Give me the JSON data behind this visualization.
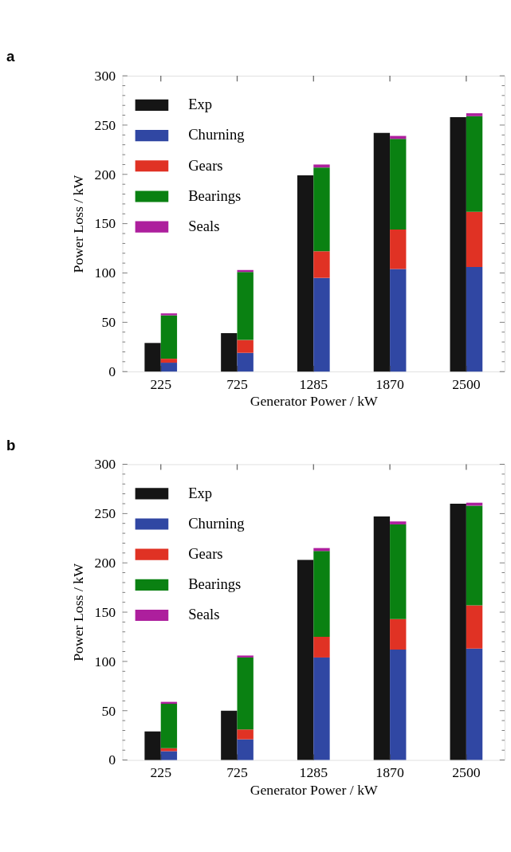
{
  "chart_data": [
    {
      "type": "bar",
      "title": "a",
      "xlabel": "Generator Power / kW",
      "ylabel": "Power Loss / kW",
      "categories": [
        "225",
        "725",
        "1285",
        "1870",
        "2500"
      ],
      "ylim": [
        0,
        300
      ],
      "yticks": [
        0,
        50,
        100,
        150,
        200,
        250,
        300
      ],
      "legend": "top left",
      "series": [
        {
          "name": "Exp",
          "color": "#151515",
          "values": [
            29,
            39,
            199,
            242,
            258
          ]
        },
        {
          "name": "Churning",
          "color": "#3047a3",
          "base": [
            0,
            0,
            0,
            0,
            0
          ],
          "values": [
            9,
            19,
            95,
            104,
            106
          ]
        },
        {
          "name": "Gears",
          "color": "#e03224",
          "base": [
            9,
            19,
            95,
            104,
            106
          ],
          "values": [
            4,
            13,
            27,
            40,
            56
          ]
        },
        {
          "name": "Bearings",
          "color": "#0a8112",
          "base": [
            13,
            32,
            122,
            144,
            162
          ],
          "values": [
            44,
            69,
            85,
            92,
            97
          ]
        },
        {
          "name": "Seals",
          "color": "#ad1f9d",
          "base": [
            57,
            101,
            207,
            236,
            259
          ],
          "values": [
            2,
            2,
            3,
            3,
            3
          ]
        }
      ]
    },
    {
      "type": "bar",
      "title": "b",
      "xlabel": "Generator Power / kW",
      "ylabel": "Power Loss / kW",
      "categories": [
        "225",
        "725",
        "1285",
        "1870",
        "2500"
      ],
      "ylim": [
        0,
        300
      ],
      "yticks": [
        0,
        50,
        100,
        150,
        200,
        250,
        300
      ],
      "legend": "top left",
      "series": [
        {
          "name": "Exp",
          "color": "#151515",
          "values": [
            29,
            50,
            203,
            247,
            260
          ]
        },
        {
          "name": "Churning",
          "color": "#3047a3",
          "base": [
            0,
            0,
            0,
            0,
            0
          ],
          "values": [
            9,
            21,
            104,
            112,
            113
          ]
        },
        {
          "name": "Gears",
          "color": "#e03224",
          "base": [
            9,
            21,
            104,
            112,
            113
          ],
          "values": [
            3,
            10,
            21,
            31,
            44
          ]
        },
        {
          "name": "Bearings",
          "color": "#0a8112",
          "base": [
            12,
            31,
            125,
            143,
            157
          ],
          "values": [
            45,
            73,
            87,
            96,
            101
          ]
        },
        {
          "name": "Seals",
          "color": "#ad1f9d",
          "base": [
            57,
            104,
            212,
            239,
            258
          ],
          "values": [
            2,
            2,
            3,
            3,
            3
          ]
        }
      ]
    }
  ]
}
